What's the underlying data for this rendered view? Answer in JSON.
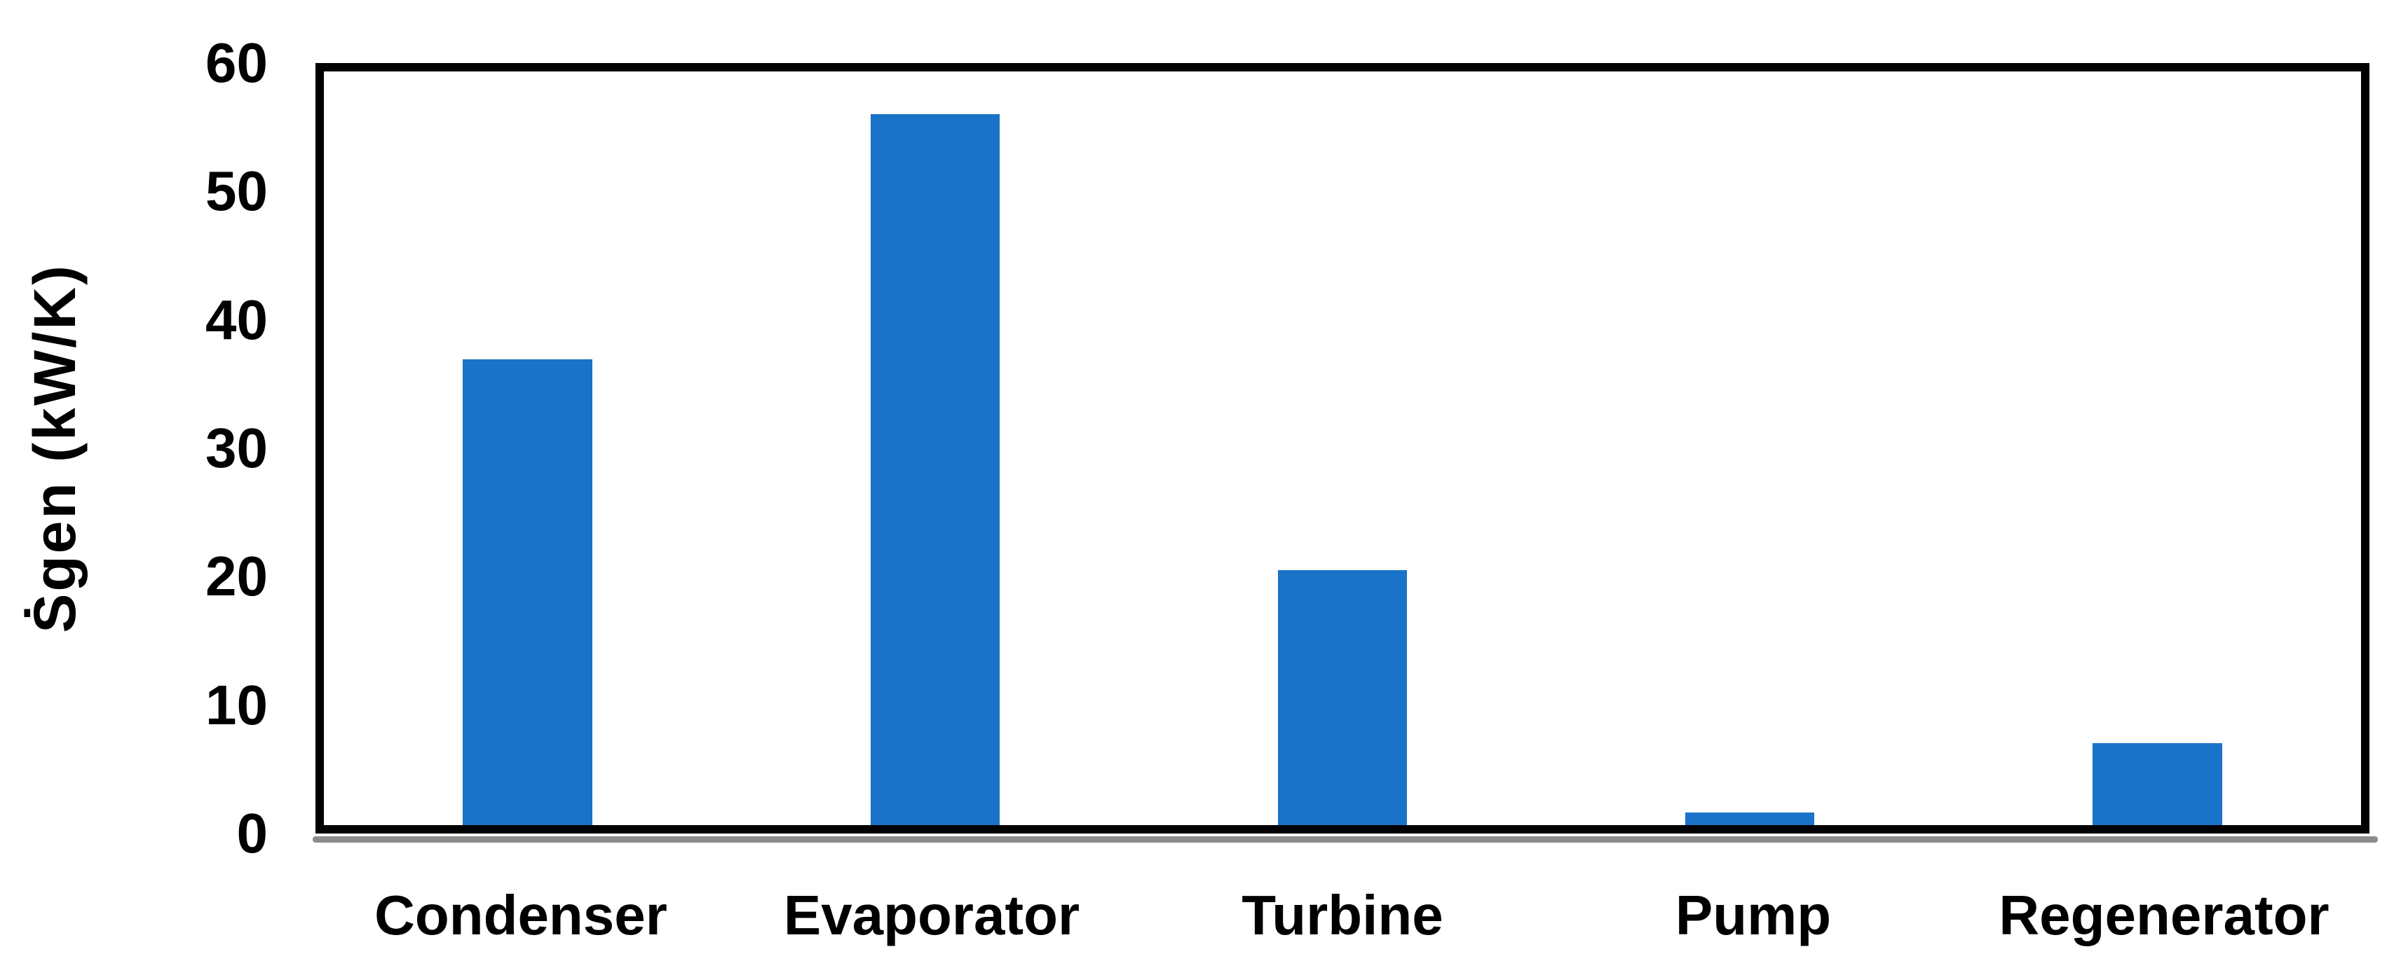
{
  "chart_data": {
    "type": "bar",
    "categories": [
      "Condenser",
      "Evaporator",
      "Turbine",
      "Pump",
      "Regenerator"
    ],
    "values": [
      37.1,
      56.6,
      20.3,
      1.0,
      6.5
    ],
    "title": "",
    "xlabel": "",
    "ylabel": "Ṡgen (kW/K)",
    "ylim": [
      0,
      60
    ],
    "yticks": [
      0,
      10,
      20,
      30,
      40,
      50,
      60
    ],
    "grid": false,
    "legend_position": "none",
    "colors": {
      "bar": "#1A73C8",
      "frame": "#000000",
      "text": "#000000",
      "axis_shadow": "#8C8C8C",
      "background": "#FFFFFF"
    }
  }
}
